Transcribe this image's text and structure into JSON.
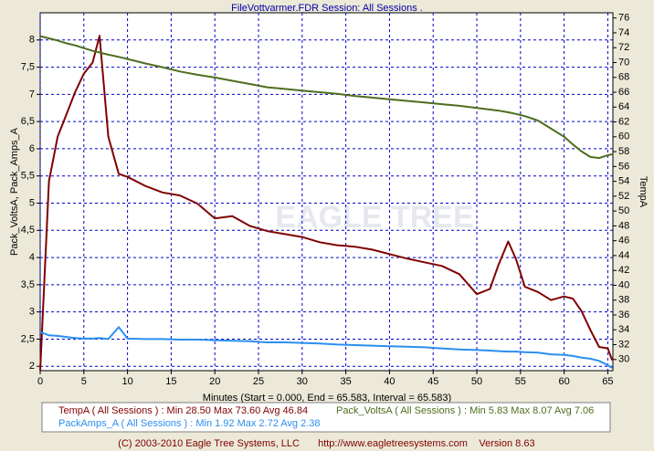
{
  "chart_data": {
    "type": "line",
    "title": "FileVottvarmer.FDR   Session: All Sessions .",
    "x_label": "Minutes (Start = 0.000,  End = 65.583, Interval =  65.583)",
    "y_label": "Pack_VoltsA, Pack_Amps_A",
    "y2_label": "TempA",
    "watermark": "EAGLE TREE",
    "footer": [
      "(C) 2003-2010 Eagle Tree Systems, LLC",
      "http://www.eagletreesystems.com",
      "Version 8.63"
    ],
    "grid": true,
    "xlim": [
      0,
      65.583
    ],
    "xticks": [
      0,
      5,
      10,
      15,
      20,
      25,
      30,
      35,
      40,
      45,
      50,
      55,
      60,
      65
    ],
    "ylim": [
      1.92,
      8.5
    ],
    "yticks": [
      2,
      {
        "value": 2.5,
        "label": "2,5"
      },
      3,
      {
        "value": 3.5,
        "label": "3,5"
      },
      4,
      {
        "value": 4.5,
        "label": "4,5"
      },
      5,
      {
        "value": 5.5,
        "label": "5,5"
      },
      6,
      {
        "value": 6.5,
        "label": "6,5"
      },
      7,
      {
        "value": 7.5,
        "label": "7,5"
      },
      8
    ],
    "y2lim": [
      28.5,
      76.7
    ],
    "y2ticks": [
      30,
      32,
      34,
      36,
      38,
      40,
      42,
      44,
      46,
      48,
      50,
      52,
      54,
      56,
      58,
      60,
      62,
      64,
      66,
      68,
      70,
      72,
      74,
      76
    ],
    "x": [
      0,
      1,
      2,
      3,
      4,
      5,
      6,
      6.8,
      7.8,
      9,
      10,
      12,
      14,
      16,
      18,
      20,
      22,
      24,
      26,
      28,
      30,
      32,
      34,
      36,
      38,
      40,
      42,
      44,
      46,
      48,
      50,
      51.5,
      52.5,
      53.6,
      54.5,
      55.5,
      57,
      58.5,
      60,
      61,
      62,
      63,
      64,
      65,
      65.5
    ],
    "series": [
      {
        "name": "TempA ( All Sessions )",
        "summary": ": Min 28.50   Max 73.60   Avg 46.84",
        "color": "#800000",
        "axis": "y2",
        "values": [
          28.5,
          54,
          60,
          63,
          66,
          68.5,
          70,
          73.6,
          60,
          55,
          54.6,
          53.4,
          52.5,
          52.1,
          51,
          49,
          49.3,
          48,
          47.3,
          46.9,
          46.5,
          45.8,
          45.4,
          45.2,
          44.8,
          44.2,
          43.6,
          43.1,
          42.6,
          41.5,
          38.8,
          39.5,
          42.8,
          45.9,
          43.5,
          39.8,
          39.1,
          38,
          38.5,
          38.2,
          36.5,
          34,
          31.7,
          31.5,
          29.9
        ]
      },
      {
        "name": "Pack_VoltsA ( All Sessions )",
        "summary": ": Min 5.83   Max 8.07   Avg 7.06",
        "color": "#4d6e1e",
        "values": [
          8.07,
          8.03,
          7.99,
          7.94,
          7.9,
          7.85,
          7.8,
          7.77,
          7.73,
          7.69,
          7.65,
          7.57,
          7.5,
          7.42,
          7.36,
          7.31,
          7.25,
          7.19,
          7.13,
          7.1,
          7.07,
          7.04,
          7.01,
          6.97,
          6.94,
          6.91,
          6.88,
          6.85,
          6.82,
          6.79,
          6.75,
          6.72,
          6.7,
          6.67,
          6.64,
          6.6,
          6.52,
          6.37,
          6.22,
          6.08,
          5.95,
          5.85,
          5.83,
          5.88,
          5.9
        ]
      },
      {
        "name": "PackAmps_A ( All Sessions )",
        "summary": ": Min 1.92   Max 2.72   Avg 2.38",
        "color": "#2b8ff0",
        "values": [
          2.63,
          2.57,
          2.56,
          2.54,
          2.52,
          2.51,
          2.51,
          2.52,
          2.5,
          2.72,
          2.51,
          2.5,
          2.5,
          2.49,
          2.49,
          2.48,
          2.47,
          2.46,
          2.44,
          2.44,
          2.43,
          2.42,
          2.4,
          2.39,
          2.38,
          2.37,
          2.36,
          2.35,
          2.33,
          2.31,
          2.3,
          2.29,
          2.28,
          2.27,
          2.27,
          2.26,
          2.25,
          2.22,
          2.21,
          2.19,
          2.16,
          2.14,
          2.1,
          2.02,
          1.97
        ]
      }
    ]
  }
}
